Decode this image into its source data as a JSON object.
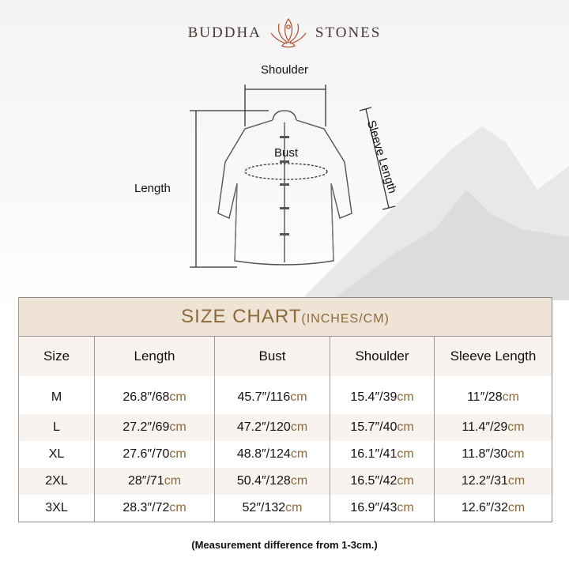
{
  "brand": {
    "left": "BUDDHA",
    "right": "STONES",
    "logo_icon": "lotus-meditation-icon",
    "accent": "#b4553a"
  },
  "diagram": {
    "labels": {
      "shoulder": "Shoulder",
      "bust": "Bust",
      "length": "Length",
      "sleeve": "Sleeve Length"
    }
  },
  "table": {
    "title": "SIZE CHART",
    "title_units": "(INCHES/CM)",
    "headers": [
      "Size",
      "Length",
      "Bust",
      "Shoulder",
      "Sleeve Length"
    ],
    "rows": [
      {
        "size": "M",
        "length": "26.8″/68",
        "bust": "45.7″/116",
        "shoulder": "15.4″/39",
        "sleeve": "11″/28"
      },
      {
        "size": "L",
        "length": "27.2″/69",
        "bust": "47.2″/120",
        "shoulder": "15.7″/40",
        "sleeve": "11.4″/29"
      },
      {
        "size": "XL",
        "length": "27.6″/70",
        "bust": "48.8″/124",
        "shoulder": "16.1″/41",
        "sleeve": "11.8″/30"
      },
      {
        "size": "2XL",
        "length": "28″/71",
        "bust": "50.4″/128",
        "shoulder": "16.5″/42",
        "sleeve": "12.2″/31"
      },
      {
        "size": "3XL",
        "length": "28.3″/72",
        "bust": "52″/132",
        "shoulder": "16.9″/43",
        "sleeve": "12.6″/32"
      }
    ],
    "unit": "cm",
    "colors": {
      "title_band": "#efe3d6",
      "title_text": "#8b6a3c",
      "alt_row": "#f8f3ef"
    }
  },
  "note": "(Measurement difference from 1-3cm.)"
}
